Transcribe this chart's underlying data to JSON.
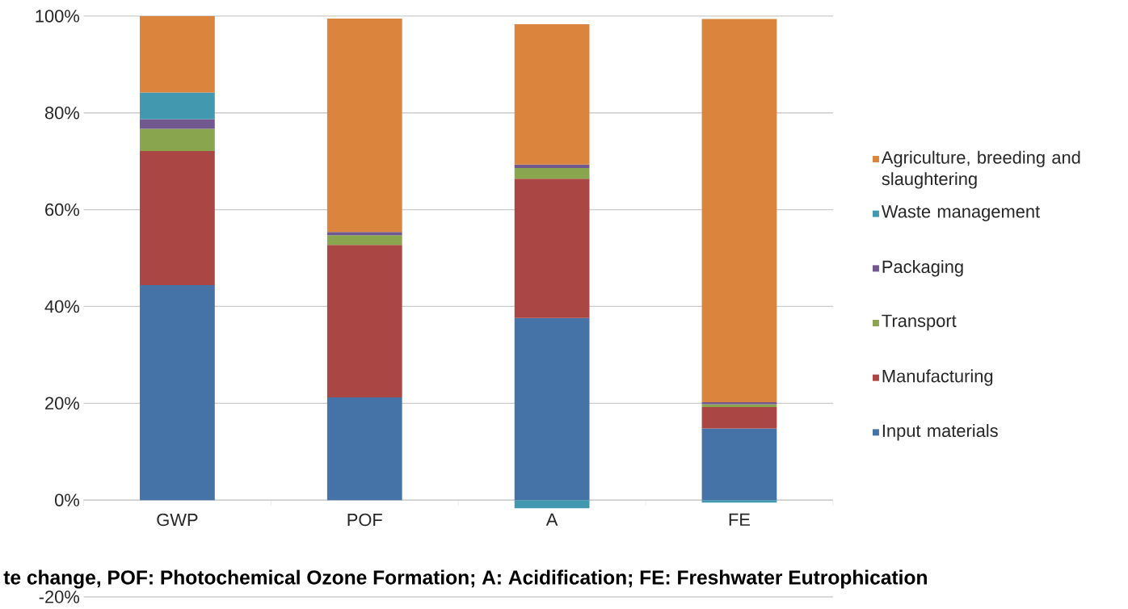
{
  "chart_data": {
    "type": "bar",
    "stacked": true,
    "categories": [
      "GWP",
      "POF",
      "A",
      "FE"
    ],
    "series": [
      {
        "name": "Input materials",
        "color": "#4572a7",
        "values": [
          44.4,
          21.2,
          37.6,
          14.8
        ]
      },
      {
        "name": "Manufacturing",
        "color": "#aa4643",
        "values": [
          27.7,
          31.5,
          28.8,
          4.4
        ]
      },
      {
        "name": "Transport",
        "color": "#89a54e",
        "values": [
          4.6,
          2.0,
          2.2,
          0.6
        ]
      },
      {
        "name": "Packaging",
        "color": "#71588f",
        "values": [
          2.0,
          0.7,
          0.7,
          0.4
        ]
      },
      {
        "name": "Waste management",
        "color": "#4198af",
        "values": [
          5.5,
          0,
          -1.7,
          -0.5
        ]
      },
      {
        "name": "Agriculture, breeding and slaughtering",
        "color": "#db843d",
        "values": [
          15.8,
          44.1,
          29.0,
          79.2
        ]
      }
    ],
    "ylim": [
      -20,
      100
    ],
    "yticks": [
      {
        "value": -20,
        "label": "-20%"
      },
      {
        "value": 0,
        "label": "0%"
      },
      {
        "value": 20,
        "label": "20%"
      },
      {
        "value": 40,
        "label": "40%"
      },
      {
        "value": 60,
        "label": "60%"
      },
      {
        "value": 80,
        "label": "80%"
      },
      {
        "value": 100,
        "label": "100%"
      }
    ],
    "grid": "y",
    "legend": "right",
    "annotations": [
      "te change, POF: Photochemical Ozone Formation; A: Acidification; FE: Freshwater Eutrophication"
    ]
  }
}
